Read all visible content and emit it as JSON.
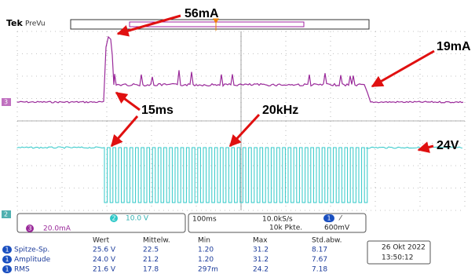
{
  "header": {
    "brand": "Tek",
    "mode": "PreVu"
  },
  "channels": {
    "ch3_marker": "3",
    "ch2_marker": "2",
    "ch2_badge": "2",
    "ch2_scale": "10.0 V",
    "ch3_badge": "3",
    "ch3_scale": "20.0mA"
  },
  "acquisition": {
    "timebase": "100ms",
    "sample_rate": "10.0kS/s",
    "record": "10k Pkte.",
    "trigger_badge": "1",
    "trigger_slope": "⁄",
    "trigger_level": "600mV"
  },
  "measurements": {
    "columns": [
      "Wert",
      "Mittelw.",
      "Min",
      "Max",
      "Std.abw."
    ],
    "rows": [
      {
        "channel": "1",
        "name": "Spitze-Sp.",
        "cells": [
          "25.6 V",
          "22.5",
          "1.20",
          "31.2",
          "8.17"
        ]
      },
      {
        "channel": "1",
        "name": "Amplitude",
        "cells": [
          "24.0 V",
          "21.2",
          "1.20",
          "31.2",
          "7.67"
        ]
      },
      {
        "channel": "1",
        "name": "RMS",
        "cells": [
          "21.6 V",
          "17.8",
          "297m",
          "24.2",
          "7.18"
        ]
      }
    ]
  },
  "timestamp": {
    "date": "26 Okt 2022",
    "time": "13:50:12"
  },
  "annotations": [
    "56mA",
    "19mA",
    "15ms",
    "20kHz",
    "24V"
  ]
}
